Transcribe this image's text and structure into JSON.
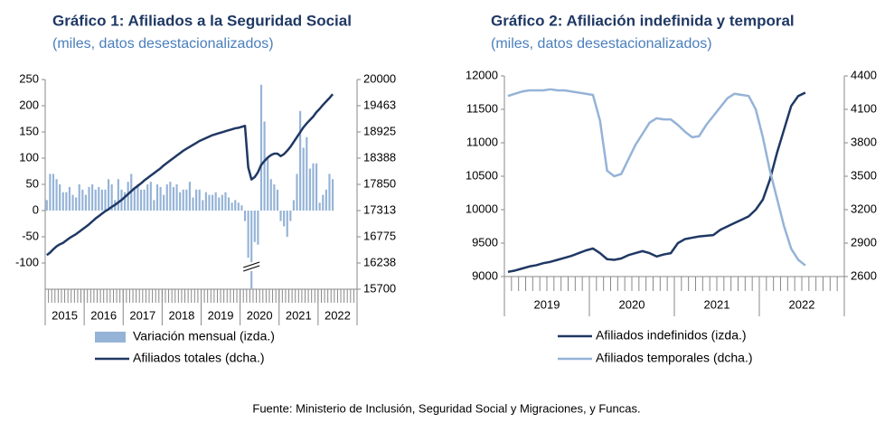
{
  "source": "Fuente: Ministerio de Inclusión, Seguridad Social y Migraciones, y Funcas.",
  "chart_data": [
    {
      "type": "bar",
      "title": "Gráfico 1: Afiliados a la Seguridad Social",
      "subtitle": "(miles, datos desestacionalizados)",
      "categories": [
        "2015",
        null,
        null,
        null,
        null,
        null,
        null,
        null,
        null,
        null,
        null,
        null,
        "2016",
        null,
        null,
        null,
        null,
        null,
        null,
        null,
        null,
        null,
        null,
        null,
        "2017",
        null,
        null,
        null,
        null,
        null,
        null,
        null,
        null,
        null,
        null,
        null,
        "2018",
        null,
        null,
        null,
        null,
        null,
        null,
        null,
        null,
        null,
        null,
        null,
        "2019",
        null,
        null,
        null,
        null,
        null,
        null,
        null,
        null,
        null,
        null,
        null,
        "2020",
        null,
        null,
        null,
        null,
        null,
        null,
        null,
        null,
        null,
        null,
        null,
        "2021",
        null,
        null,
        null,
        null,
        null,
        null,
        null,
        null,
        null,
        null,
        null,
        "2022",
        null,
        null,
        null,
        null,
        null,
        null,
        null,
        null,
        null,
        null,
        null
      ],
      "ylim": [
        -150,
        250
      ],
      "yticks": [
        -100,
        -50,
        0,
        50,
        100,
        150,
        200,
        250
      ],
      "y2lim": [
        15700,
        20000
      ],
      "y2ticks": [
        15700,
        16238,
        16775,
        17313,
        17850,
        18388,
        18925,
        19463,
        20000
      ],
      "series": [
        {
          "name": "Variación mensual (izda.)",
          "type": "bar",
          "color": "#95b3d7",
          "values": [
            20,
            70,
            70,
            60,
            50,
            35,
            35,
            45,
            30,
            25,
            50,
            40,
            30,
            45,
            50,
            40,
            45,
            40,
            40,
            60,
            50,
            20,
            60,
            40,
            35,
            55,
            70,
            45,
            50,
            40,
            40,
            50,
            55,
            20,
            50,
            45,
            30,
            50,
            55,
            45,
            50,
            35,
            40,
            40,
            55,
            25,
            40,
            40,
            20,
            35,
            30,
            30,
            35,
            25,
            30,
            35,
            25,
            15,
            20,
            15,
            10,
            -20,
            -90,
            -150,
            -60,
            -65,
            240,
            170,
            100,
            60,
            50,
            40,
            -20,
            -30,
            -50,
            -20,
            20,
            70,
            190,
            120,
            140,
            80,
            90,
            90,
            15,
            30,
            40,
            70,
            60,
            null,
            null,
            null,
            null,
            null,
            null,
            null
          ]
        },
        {
          "name": "Afiliados totales (dcha.)",
          "type": "line",
          "axis": "y2",
          "color": "#1f3864",
          "values": [
            16400,
            16450,
            16520,
            16580,
            16620,
            16650,
            16700,
            16750,
            16790,
            16830,
            16880,
            16930,
            16980,
            17030,
            17090,
            17150,
            17200,
            17250,
            17300,
            17340,
            17390,
            17430,
            17480,
            17530,
            17590,
            17650,
            17710,
            17770,
            17820,
            17870,
            17930,
            17980,
            18030,
            18080,
            18130,
            18180,
            18240,
            18290,
            18340,
            18390,
            18440,
            18490,
            18540,
            18580,
            18620,
            18660,
            18700,
            18740,
            18770,
            18800,
            18830,
            18860,
            18880,
            18900,
            18920,
            18940,
            18960,
            18980,
            19000,
            19010,
            19030,
            19050,
            18200,
            17950,
            18000,
            18100,
            18250,
            18330,
            18400,
            18450,
            18480,
            18480,
            18430,
            18470,
            18540,
            18620,
            18720,
            18820,
            18920,
            19020,
            19100,
            19170,
            19240,
            19330,
            19400,
            19480,
            19550,
            19620,
            19700,
            null,
            null,
            null,
            null,
            null,
            null,
            null
          ]
        }
      ]
    },
    {
      "type": "line",
      "title": "Gráfico 2: Afiliación indefinida y temporal",
      "subtitle": "(miles, datos desestacionalizados)",
      "categories": [
        "2019",
        null,
        null,
        null,
        null,
        null,
        null,
        null,
        null,
        null,
        null,
        null,
        "2020",
        null,
        null,
        null,
        null,
        null,
        null,
        null,
        null,
        null,
        null,
        null,
        "2021",
        null,
        null,
        null,
        null,
        null,
        null,
        null,
        null,
        null,
        null,
        null,
        "2022",
        null,
        null,
        null,
        null,
        null,
        null,
        null,
        null,
        null,
        null,
        null
      ],
      "ylim": [
        9000,
        12000
      ],
      "yticks": [
        9000,
        9500,
        10000,
        10500,
        11000,
        11500,
        12000
      ],
      "y2lim": [
        2600,
        4400
      ],
      "y2ticks": [
        2600,
        2900,
        3200,
        3500,
        3800,
        4100,
        4400
      ],
      "series": [
        {
          "name": "Afiliados indefinidos (izda.)",
          "type": "line",
          "color": "#1f3864",
          "values": [
            9070,
            9090,
            9120,
            9150,
            9170,
            9200,
            9220,
            9250,
            9280,
            9310,
            9350,
            9390,
            9420,
            9350,
            9260,
            9250,
            9270,
            9320,
            9350,
            9380,
            9350,
            9300,
            9330,
            9350,
            9500,
            9560,
            9580,
            9600,
            9610,
            9620,
            9700,
            9750,
            9800,
            9850,
            9900,
            10000,
            10150,
            10450,
            10850,
            11200,
            11550,
            11700,
            11750,
            null,
            null,
            null,
            null,
            null
          ]
        },
        {
          "name": "Afiliados temporales (dcha.)",
          "type": "line",
          "axis": "y2",
          "color": "#95b3d7",
          "values": [
            4220,
            4240,
            4260,
            4270,
            4270,
            4270,
            4280,
            4270,
            4270,
            4260,
            4250,
            4240,
            4230,
            4000,
            3550,
            3500,
            3520,
            3650,
            3780,
            3880,
            3980,
            4020,
            4010,
            4010,
            3960,
            3900,
            3850,
            3860,
            3960,
            4040,
            4120,
            4200,
            4240,
            4230,
            4220,
            4100,
            3850,
            3550,
            3300,
            3050,
            2850,
            2750,
            2700,
            null,
            null,
            null,
            null,
            null
          ]
        }
      ]
    }
  ]
}
